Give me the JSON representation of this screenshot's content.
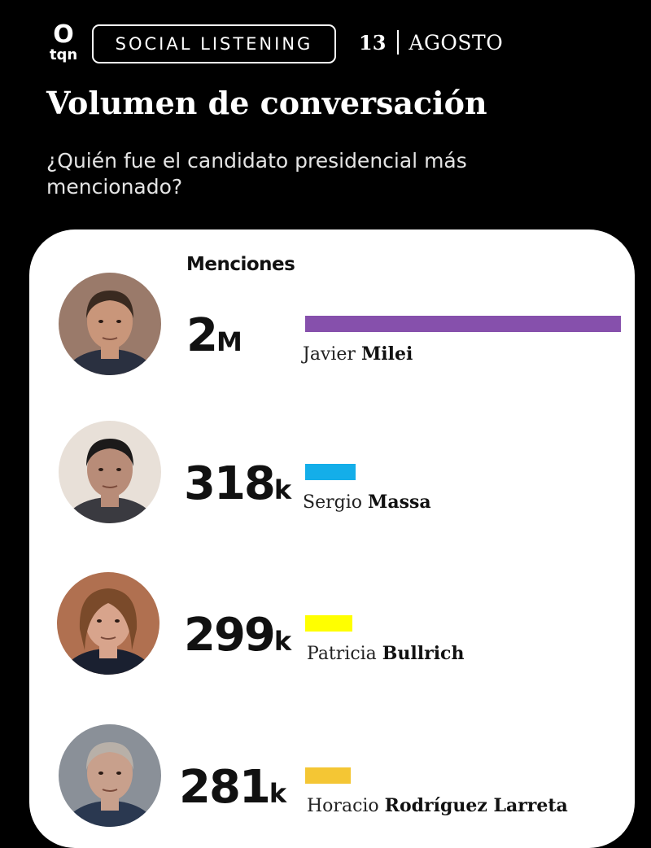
{
  "header": {
    "logo_mark": "O",
    "logo_text": "tqn",
    "tag": "SOCIAL LISTENING",
    "day": "13",
    "month": "AGOSTO"
  },
  "title": "Volumen de conversación",
  "subtitle": "¿Quién fue el candidato presidencial más mencionado?",
  "chart_data": {
    "type": "bar",
    "orientation": "horizontal",
    "title": "Volumen de conversación",
    "subtitle": "¿Quién fue el candidato presidencial más mencionado?",
    "value_label": "Menciones",
    "categories": [
      "Javier Milei",
      "Sergio Massa",
      "Patricia Bullrich",
      "Horacio Rodríguez Larreta"
    ],
    "values": [
      2000000,
      318000,
      299000,
      281000
    ],
    "labels": [
      {
        "num": "2",
        "unit": "M"
      },
      {
        "num": "318",
        "unit": "k"
      },
      {
        "num": "299",
        "unit": "k"
      },
      {
        "num": "281",
        "unit": "k"
      }
    ],
    "names": [
      {
        "first": "Javier",
        "last": "Milei"
      },
      {
        "first": "Sergio",
        "last": "Massa"
      },
      {
        "first": "Patricia",
        "last": "Bullrich"
      },
      {
        "first": "Horacio",
        "last": "Rodríguez Larreta"
      }
    ],
    "colors": [
      "#8650ac",
      "#14aee9",
      "#ffff00",
      "#f4c634"
    ],
    "xlim": [
      0,
      2000000
    ],
    "grid": false,
    "legend": "none"
  }
}
